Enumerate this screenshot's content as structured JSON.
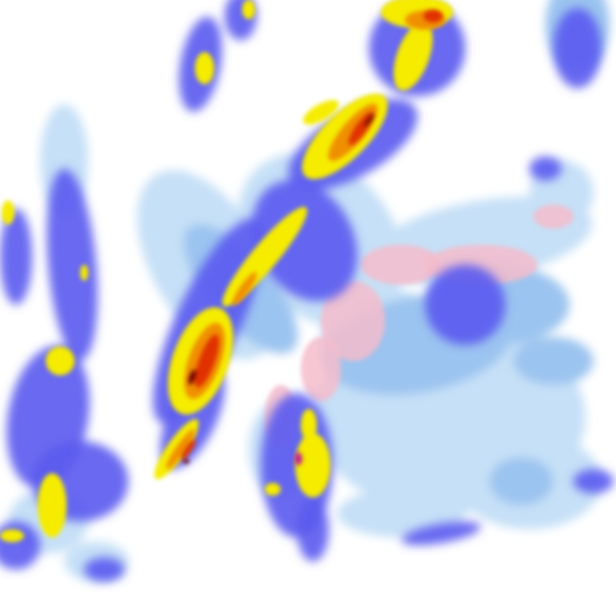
{
  "radar_map": {
    "background_color": "#ffffff",
    "intensity_colors": {
      "very_light": "#c6e0f7",
      "light": "#9cc4f0",
      "moderate": "#5a5af0",
      "strong": "#3030e0",
      "heavy": "#f5ec00",
      "very_heavy": "#f09000",
      "intense": "#e03000",
      "extreme": "#6a0000",
      "mixed_light": "#f5bccb",
      "mixed_heavy": "#c02090"
    }
  }
}
